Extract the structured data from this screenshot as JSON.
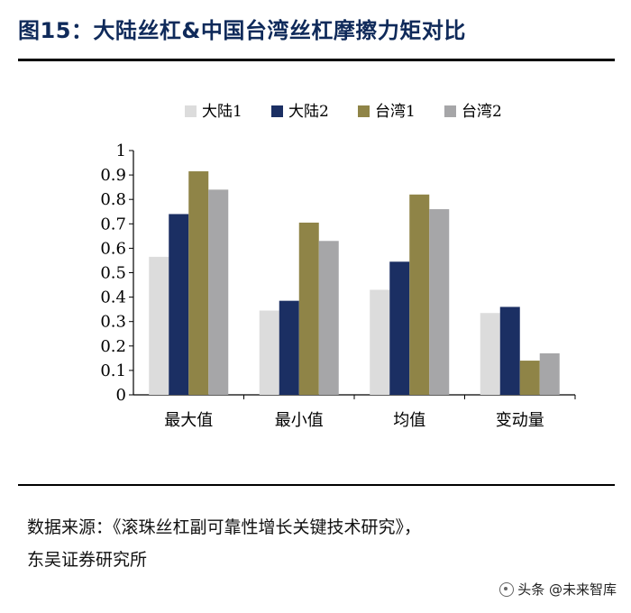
{
  "header": {
    "title": "图15：大陆丝杠&中国台湾丝杠摩擦力矩对比"
  },
  "footer": {
    "source_line1": "数据来源：《滚珠丝杠副可靠性增长关键技术研究》，",
    "source_line2": "东吴证券研究所"
  },
  "watermark": {
    "text": "头条 @未来智库"
  },
  "chart_data": {
    "type": "bar",
    "title": "",
    "xlabel": "",
    "ylabel": "",
    "ylim": [
      0,
      1
    ],
    "yticks": [
      "0",
      "0.1",
      "0.2",
      "0.3",
      "0.4",
      "0.5",
      "0.6",
      "0.7",
      "0.8",
      "0.9",
      "1"
    ],
    "grid": false,
    "legend_position": "top",
    "categories": [
      "最大值",
      "最小值",
      "均值",
      "变动量"
    ],
    "series": [
      {
        "name": "大陆1",
        "color": "#dcdcdc",
        "values": [
          0.565,
          0.345,
          0.43,
          0.335
        ]
      },
      {
        "name": "大陆2",
        "color": "#1b2f63",
        "values": [
          0.74,
          0.385,
          0.545,
          0.36
        ]
      },
      {
        "name": "台湾1",
        "color": "#8f8447",
        "values": [
          0.915,
          0.705,
          0.82,
          0.14
        ]
      },
      {
        "name": "台湾2",
        "color": "#a6a6a8",
        "values": [
          0.84,
          0.63,
          0.76,
          0.17
        ]
      }
    ]
  }
}
